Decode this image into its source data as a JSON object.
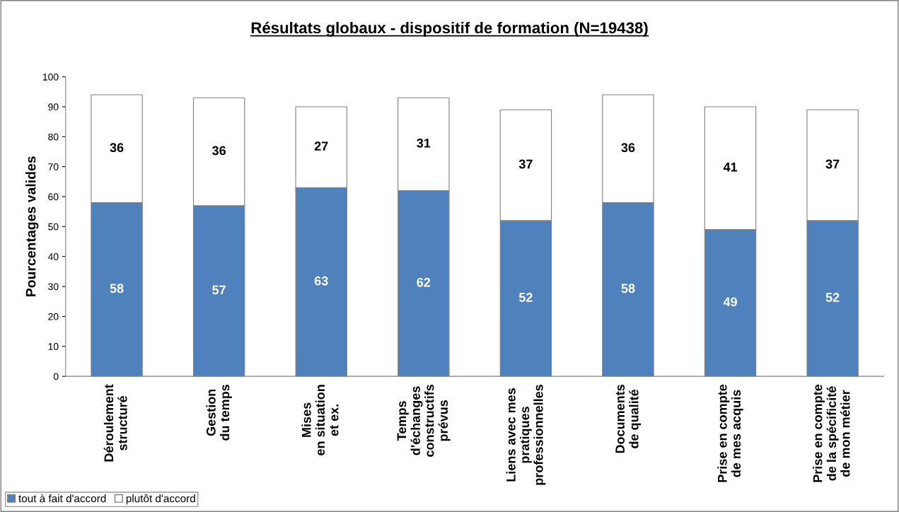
{
  "chart_data": {
    "type": "bar",
    "title": "Résultats globaux - dispositif de formation (N=19438)",
    "ylabel": "Pourcentages valides",
    "categories": [
      "Déroulement\nstructuré",
      "Gestion\ndu temps",
      "Mises\nen situation\net ex.",
      "Temps\nd'échanges\nconstructifs\nprévus",
      "Liens avec mes\npratiques\nprofessionnelles",
      "Documents\nde qualité",
      "Prise en compte\nde mes acquis",
      "Prise en compte\nde la spécificité\nde mon métier"
    ],
    "series": [
      {
        "name": "tout à fait d'accord",
        "color": "#4f81bd",
        "values": [
          58,
          57,
          63,
          62,
          52,
          58,
          49,
          52
        ]
      },
      {
        "name": "plutôt d'accord",
        "color": "#ffffff",
        "values": [
          36,
          36,
          27,
          31,
          37,
          36,
          41,
          37
        ]
      }
    ],
    "stacked": true,
    "data_labels": true,
    "ylim": [
      0,
      100
    ],
    "yticks": [
      0,
      10,
      20,
      30,
      40,
      50,
      60,
      70,
      80,
      90,
      100
    ],
    "grid": false,
    "legend": "bottom left"
  }
}
